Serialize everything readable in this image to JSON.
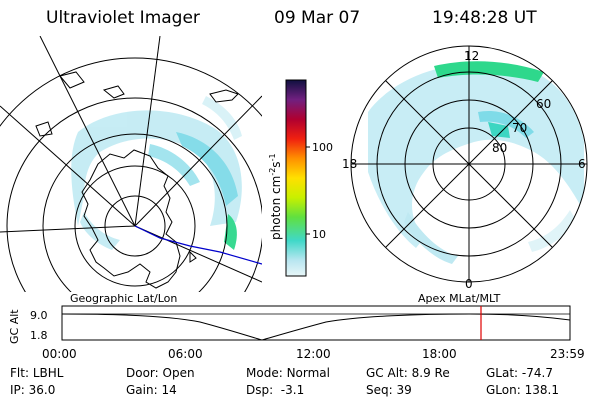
{
  "header": {
    "title": "Ultraviolet Imager",
    "date": "09 Mar 07",
    "time": "19:48:28 UT"
  },
  "colorbar": {
    "label": "photon cm",
    "label_sup1": "-2",
    "label_mid": "s",
    "label_sup2": "-1",
    "ticks": [
      "100",
      "10"
    ],
    "scale": "log"
  },
  "apex_map": {
    "mlt_labels": {
      "top": "12",
      "left": "18",
      "right": "6",
      "bottom": "0"
    },
    "lat_labels": [
      "60",
      "70",
      "80"
    ]
  },
  "timeline": {
    "left_title": "Geographic Lat/Lon",
    "right_title": "Apex  MLat/MLT",
    "axis_label": "GC Alt",
    "y_ticks": [
      "9.0",
      "1.8"
    ],
    "x_ticks": [
      "00:00",
      "06:00",
      "12:00",
      "18:00",
      "23:59"
    ]
  },
  "footer": [
    [
      {
        "label": "Flt:",
        "value": "LBHL"
      },
      {
        "label": "IP:",
        "value": "36.0"
      }
    ],
    [
      {
        "label": "Door:",
        "value": "Open"
      },
      {
        "label": "Gain:",
        "value": "14"
      }
    ],
    [
      {
        "label": "Mode:",
        "value": "Normal"
      },
      {
        "label": "Dsp:",
        "value": "-3.1"
      }
    ],
    [
      {
        "label": "GC Alt:",
        "value": "8.9 Re"
      },
      {
        "label": "Seq:",
        "value": "39"
      }
    ],
    [
      {
        "label": "GLat:",
        "value": "-74.7"
      },
      {
        "label": "GLon:",
        "value": "138.1"
      }
    ]
  ],
  "colors": {
    "marker": "#e00000",
    "track": "#0000cc",
    "aurora_light": "#bfe9f2",
    "aurora_mid": "#6fd6e6",
    "aurora_hot": "#2fd88a"
  }
}
